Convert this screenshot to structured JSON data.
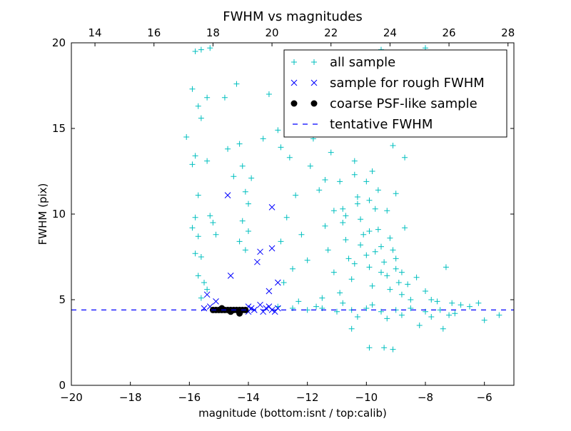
{
  "chart_data": {
    "type": "scatter",
    "title": "FWHM vs magnitudes",
    "xlabel": "magnitude (bottom:isnt / top:calib)",
    "ylabel": "FWHM (pix)",
    "xlim": [
      -20,
      -5
    ],
    "ylim": [
      0,
      20
    ],
    "top_xlim": [
      13.2,
      28.2
    ],
    "xticks": [
      -20,
      -18,
      -16,
      -14,
      -12,
      -10,
      -8,
      -6
    ],
    "xtick_labels": [
      "−20",
      "−18",
      "−16",
      "−14",
      "−12",
      "−10",
      "−8",
      "−6"
    ],
    "top_xticks": [
      14,
      16,
      18,
      20,
      22,
      24,
      26,
      28
    ],
    "top_xtick_labels": [
      "14",
      "16",
      "18",
      "20",
      "22",
      "24",
      "26",
      "28"
    ],
    "yticks": [
      0,
      5,
      10,
      15,
      20
    ],
    "ytick_labels": [
      "0",
      "5",
      "10",
      "15",
      "20"
    ],
    "legend_position": "upper-right",
    "series": [
      {
        "name": "all sample",
        "marker": "plus",
        "color": "#00bfbf",
        "points": [
          [
            -15.8,
            19.5
          ],
          [
            -15.6,
            19.6
          ],
          [
            -15.3,
            19.7
          ],
          [
            -16.1,
            14.5
          ],
          [
            -15.9,
            17.3
          ],
          [
            -15.7,
            16.3
          ],
          [
            -15.6,
            15.6
          ],
          [
            -15.8,
            13.4
          ],
          [
            -15.9,
            12.9
          ],
          [
            -15.7,
            11.1
          ],
          [
            -15.8,
            9.8
          ],
          [
            -15.9,
            9.2
          ],
          [
            -15.7,
            8.7
          ],
          [
            -15.8,
            7.7
          ],
          [
            -15.6,
            7.5
          ],
          [
            -15.7,
            6.4
          ],
          [
            -15.5,
            6.0
          ],
          [
            -15.6,
            5.1
          ],
          [
            -15.4,
            5.6
          ],
          [
            -15.3,
            9.9
          ],
          [
            -15.2,
            9.5
          ],
          [
            -15.1,
            8.8
          ],
          [
            -15.4,
            13.1
          ],
          [
            -15.4,
            16.8
          ],
          [
            -14.8,
            16.8
          ],
          [
            -14.7,
            13.8
          ],
          [
            -14.5,
            12.2
          ],
          [
            -14.3,
            14.1
          ],
          [
            -14.2,
            12.8
          ],
          [
            -14.1,
            11.3
          ],
          [
            -14.0,
            10.6
          ],
          [
            -14.2,
            9.6
          ],
          [
            -14.0,
            9.0
          ],
          [
            -14.3,
            8.4
          ],
          [
            -14.1,
            7.9
          ],
          [
            -13.9,
            12.1
          ],
          [
            -14.4,
            17.6
          ],
          [
            -13.5,
            14.4
          ],
          [
            -13.3,
            17.0
          ],
          [
            -13.0,
            14.9
          ],
          [
            -12.9,
            13.9
          ],
          [
            -12.6,
            13.3
          ],
          [
            -12.4,
            11.1
          ],
          [
            -12.7,
            9.8
          ],
          [
            -12.2,
            8.8
          ],
          [
            -12.9,
            8.4
          ],
          [
            -12.0,
            7.3
          ],
          [
            -12.5,
            6.8
          ],
          [
            -11.9,
            12.8
          ],
          [
            -11.8,
            14.4
          ],
          [
            -11.6,
            11.4
          ],
          [
            -11.4,
            9.3
          ],
          [
            -11.3,
            7.9
          ],
          [
            -11.1,
            6.6
          ],
          [
            -11.2,
            13.6
          ],
          [
            -11.0,
            15.0
          ],
          [
            -10.9,
            11.9
          ],
          [
            -10.8,
            10.3
          ],
          [
            -10.7,
            8.5
          ],
          [
            -10.6,
            7.4
          ],
          [
            -10.5,
            6.2
          ],
          [
            -10.4,
            13.1
          ],
          [
            -10.3,
            11.0
          ],
          [
            -10.2,
            9.7
          ],
          [
            -10.1,
            8.8
          ],
          [
            -10.0,
            7.6
          ],
          [
            -9.9,
            6.9
          ],
          [
            -9.8,
            5.8
          ],
          [
            -9.7,
            10.3
          ],
          [
            -9.6,
            9.1
          ],
          [
            -9.5,
            8.1
          ],
          [
            -9.4,
            7.2
          ],
          [
            -9.3,
            6.4
          ],
          [
            -9.2,
            5.6
          ],
          [
            -9.1,
            7.9
          ],
          [
            -9.0,
            6.8
          ],
          [
            -8.9,
            6.0
          ],
          [
            -8.8,
            5.3
          ],
          [
            -8.7,
            9.2
          ],
          [
            -8.6,
            5.9
          ],
          [
            -8.5,
            5.0
          ],
          [
            -8.3,
            6.3
          ],
          [
            -8.0,
            5.5
          ],
          [
            -7.8,
            5.0
          ],
          [
            -7.6,
            4.9
          ],
          [
            -7.3,
            6.9
          ],
          [
            -7.1,
            4.8
          ],
          [
            -6.8,
            4.7
          ],
          [
            -6.5,
            4.6
          ],
          [
            -6.0,
            3.8
          ],
          [
            -5.5,
            4.1
          ],
          [
            -9.9,
            2.2
          ],
          [
            -9.4,
            2.2
          ],
          [
            -9.1,
            2.1
          ],
          [
            -10.5,
            3.3
          ],
          [
            -8.2,
            3.5
          ],
          [
            -7.4,
            3.3
          ],
          [
            -9.5,
            19.6
          ],
          [
            -8.0,
            19.7
          ],
          [
            -9.4,
            16.9
          ],
          [
            -10.1,
            15.8
          ],
          [
            -10.6,
            14.8
          ],
          [
            -9.8,
            12.5
          ],
          [
            -9.1,
            14.0
          ],
          [
            -10.0,
            11.9
          ],
          [
            -9.6,
            11.4
          ],
          [
            -10.3,
            10.6
          ],
          [
            -9.3,
            10.2
          ],
          [
            -10.8,
            9.5
          ],
          [
            -9.9,
            9.0
          ],
          [
            -9.2,
            8.6
          ],
          [
            -10.2,
            8.2
          ],
          [
            -9.7,
            7.8
          ],
          [
            -10.4,
            7.1
          ],
          [
            -9.5,
            6.6
          ],
          [
            -9.0,
            7.4
          ],
          [
            -8.8,
            6.6
          ],
          [
            -10.9,
            5.4
          ],
          [
            -11.5,
            5.1
          ],
          [
            -12.3,
            4.9
          ],
          [
            -12.8,
            6.0
          ],
          [
            -13.0,
            4.6
          ],
          [
            -12.5,
            4.5
          ],
          [
            -12.0,
            4.4
          ],
          [
            -11.5,
            4.5
          ],
          [
            -11.0,
            4.3
          ],
          [
            -10.5,
            4.4
          ],
          [
            -10.0,
            4.5
          ],
          [
            -9.5,
            4.3
          ],
          [
            -9.0,
            4.4
          ],
          [
            -8.5,
            4.5
          ],
          [
            -8.0,
            4.3
          ],
          [
            -7.5,
            4.4
          ],
          [
            -7.0,
            4.2
          ],
          [
            -6.2,
            4.8
          ],
          [
            -11.7,
            4.6
          ],
          [
            -10.8,
            4.8
          ],
          [
            -9.8,
            4.7
          ],
          [
            -8.8,
            4.1
          ],
          [
            -7.8,
            4.0
          ],
          [
            -7.2,
            4.1
          ],
          [
            -9.3,
            3.9
          ],
          [
            -10.3,
            4.0
          ],
          [
            -10.7,
            9.9
          ],
          [
            -9.9,
            10.8
          ],
          [
            -11.1,
            10.2
          ],
          [
            -10.4,
            12.3
          ],
          [
            -9.0,
            11.2
          ],
          [
            -8.7,
            13.3
          ],
          [
            -11.4,
            12.0
          ]
        ]
      },
      {
        "name": "sample for rough FWHM",
        "marker": "x",
        "color": "#0000ff",
        "points": [
          [
            -14.7,
            11.1
          ],
          [
            -13.2,
            10.4
          ],
          [
            -13.7,
            7.2
          ],
          [
            -13.6,
            7.8
          ],
          [
            -13.2,
            8.0
          ],
          [
            -14.6,
            6.4
          ],
          [
            -13.3,
            5.5
          ],
          [
            -13.0,
            6.0
          ],
          [
            -15.4,
            5.3
          ],
          [
            -15.1,
            4.9
          ],
          [
            -15.3,
            4.6
          ],
          [
            -14.0,
            4.6
          ],
          [
            -13.6,
            4.7
          ],
          [
            -13.4,
            4.5
          ],
          [
            -13.2,
            4.4
          ],
          [
            -13.0,
            4.5
          ],
          [
            -13.8,
            4.4
          ],
          [
            -14.0,
            4.3
          ],
          [
            -15.5,
            4.5
          ],
          [
            -13.5,
            4.3
          ],
          [
            -13.1,
            4.3
          ],
          [
            -13.9,
            4.5
          ],
          [
            -13.3,
            4.6
          ]
        ]
      },
      {
        "name": "coarse PSF-like sample",
        "marker": "circle",
        "color": "#000000",
        "points": [
          [
            -15.2,
            4.4
          ],
          [
            -15.1,
            4.4
          ],
          [
            -15.0,
            4.4
          ],
          [
            -14.9,
            4.4
          ],
          [
            -14.8,
            4.4
          ],
          [
            -14.7,
            4.4
          ],
          [
            -14.6,
            4.4
          ],
          [
            -14.5,
            4.4
          ],
          [
            -14.4,
            4.4
          ],
          [
            -14.3,
            4.4
          ],
          [
            -14.2,
            4.4
          ],
          [
            -14.1,
            4.4
          ],
          [
            -14.3,
            4.2
          ],
          [
            -14.6,
            4.3
          ],
          [
            -14.9,
            4.5
          ]
        ]
      },
      {
        "name": "tentative FWHM",
        "marker": "dashed-line",
        "color": "#0000ff",
        "value": 4.4
      }
    ]
  }
}
